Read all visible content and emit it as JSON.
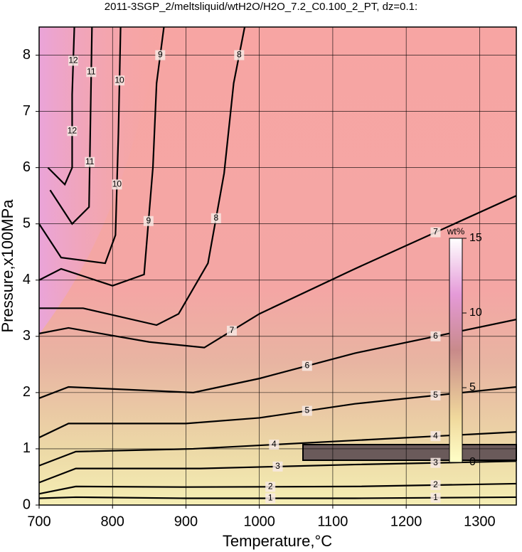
{
  "chart_data": {
    "type": "contour",
    "title": "2011-3SGP_2/meltsliquid/wtH2O/H2O_7.2_C0.100_2_PT, dz=0.1:",
    "xlabel": "Temperature,°C",
    "ylabel": "Pressure,x100MPa",
    "xlim": [
      700,
      1350
    ],
    "ylim": [
      0,
      8.5
    ],
    "xticks": [
      700,
      800,
      900,
      1000,
      1100,
      1200,
      1300
    ],
    "yticks": [
      0,
      1,
      2,
      3,
      4,
      5,
      6,
      7,
      8
    ],
    "grid": true,
    "colorbar": {
      "label": "wt%",
      "lim": [
        0,
        15
      ],
      "ticks": [
        0,
        5,
        10,
        15
      ]
    },
    "contours": [
      {
        "level": 1,
        "x": [
          700,
          750,
          900,
          1130,
          1350
        ],
        "y": [
          0.12,
          0.14,
          0.12,
          0.12,
          0.14
        ]
      },
      {
        "level": 2,
        "x": [
          700,
          750,
          900,
          1130,
          1350
        ],
        "y": [
          0.2,
          0.33,
          0.32,
          0.33,
          0.38
        ]
      },
      {
        "level": 3,
        "x": [
          700,
          750,
          920,
          1130,
          1350
        ],
        "y": [
          0.4,
          0.65,
          0.65,
          0.72,
          0.78
        ]
      },
      {
        "level": 4,
        "x": [
          700,
          750,
          910,
          1130,
          1350
        ],
        "y": [
          0.7,
          0.95,
          1.0,
          1.15,
          1.3
        ]
      },
      {
        "level": 5,
        "x": [
          700,
          740,
          900,
          1000,
          1130,
          1350
        ],
        "y": [
          1.2,
          1.45,
          1.45,
          1.55,
          1.8,
          2.1
        ]
      },
      {
        "level": 6,
        "x": [
          700,
          740,
          910,
          1000,
          1130,
          1350
        ],
        "y": [
          1.9,
          2.1,
          2.0,
          2.25,
          2.7,
          3.3
        ]
      },
      {
        "level": 7,
        "x": [
          700,
          740,
          850,
          925,
          1000,
          1130,
          1350
        ],
        "y": [
          3.05,
          3.15,
          2.9,
          2.8,
          3.4,
          4.2,
          5.5
        ]
      },
      {
        "level": 8,
        "x": [
          700,
          760,
          860,
          890,
          930,
          952,
          965,
          980
        ],
        "y": [
          3.5,
          3.5,
          3.2,
          3.4,
          4.3,
          5.9,
          7.5,
          8.5
        ]
      },
      {
        "level": 9,
        "x": [
          700,
          730,
          800,
          843,
          855,
          860,
          870
        ],
        "y": [
          4.0,
          4.2,
          3.9,
          4.1,
          6.0,
          7.5,
          8.5
        ]
      },
      {
        "level": 10,
        "x": [
          700,
          730,
          790,
          804,
          808,
          811
        ],
        "y": [
          5.0,
          4.4,
          4.3,
          4.8,
          6.6,
          8.5
        ]
      },
      {
        "level": 11,
        "x": [
          715,
          745,
          768,
          770,
          772
        ],
        "y": [
          5.6,
          5.0,
          5.3,
          6.9,
          8.5
        ]
      },
      {
        "level": 12,
        "x": [
          712,
          735,
          745,
          745,
          748
        ],
        "y": [
          6.0,
          5.7,
          6.0,
          7.3,
          8.5
        ]
      }
    ]
  }
}
